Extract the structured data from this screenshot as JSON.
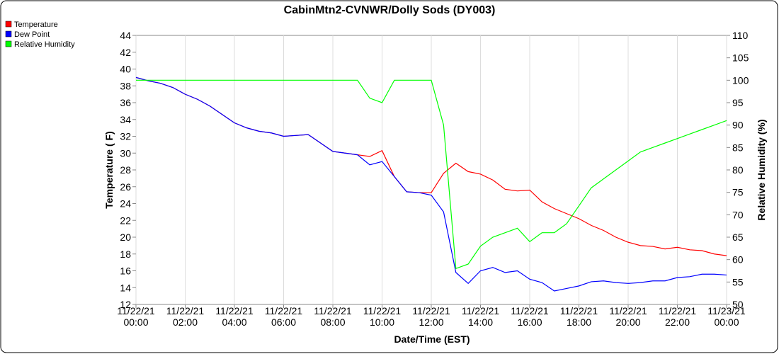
{
  "chart_data": {
    "type": "line",
    "title": "CabinMtn2-CVNWR/Dolly Sods (DY003)",
    "x_label": "Date/Time (EST)",
    "y_label": "Temperature ( F)",
    "y2_label": "Relative Humidity (%)",
    "x": [
      0,
      0.5,
      1,
      1.5,
      2,
      2.5,
      3,
      3.5,
      4,
      4.5,
      5,
      5.5,
      6,
      6.5,
      7,
      7.5,
      8,
      8.5,
      9,
      9.5,
      10,
      10.5,
      11,
      11.5,
      12,
      12.5,
      13,
      13.5,
      14,
      14.5,
      15,
      15.5,
      16,
      16.5,
      17,
      17.5,
      18,
      18.5,
      19,
      19.5,
      20,
      20.5,
      21,
      21.5,
      22,
      22.5,
      23,
      23.5,
      24
    ],
    "series": [
      {
        "name": "Temperature",
        "color": "#ff0000",
        "axis": "y",
        "values": [
          39.0,
          38.6,
          38.3,
          37.8,
          37.0,
          36.4,
          35.6,
          34.6,
          33.6,
          33.0,
          32.6,
          32.4,
          32.0,
          32.1,
          32.2,
          31.2,
          30.2,
          30.0,
          29.8,
          29.6,
          30.3,
          27.2,
          25.4,
          25.3,
          25.3,
          27.6,
          28.8,
          27.8,
          27.5,
          26.8,
          25.7,
          25.5,
          25.6,
          24.2,
          23.4,
          22.8,
          22.2,
          21.4,
          20.8,
          20.0,
          19.4,
          19.0,
          18.9,
          18.6,
          18.8,
          18.5,
          18.4,
          18.0,
          17.8
        ]
      },
      {
        "name": "Dew Point",
        "color": "#0000ff",
        "axis": "y",
        "values": [
          39.0,
          38.6,
          38.3,
          37.8,
          37.0,
          36.4,
          35.6,
          34.6,
          33.6,
          33.0,
          32.6,
          32.4,
          32.0,
          32.1,
          32.2,
          31.2,
          30.2,
          30.0,
          29.8,
          28.6,
          29.0,
          27.2,
          25.4,
          25.3,
          25.0,
          23.0,
          15.8,
          14.5,
          16.0,
          16.4,
          15.8,
          16.0,
          15.0,
          14.6,
          13.6,
          13.9,
          14.2,
          14.7,
          14.8,
          14.6,
          14.5,
          14.6,
          14.8,
          14.8,
          15.2,
          15.3,
          15.6,
          15.6,
          15.5
        ]
      },
      {
        "name": "Relative Humidity",
        "color": "#00ff00",
        "axis": "y2",
        "values": [
          100,
          100,
          100,
          100,
          100,
          100,
          100,
          100,
          100,
          100,
          100,
          100,
          100,
          100,
          100,
          100,
          100,
          100,
          100,
          96,
          95,
          100,
          100,
          100,
          100,
          90,
          58,
          59,
          63,
          65,
          66,
          67,
          64,
          66,
          66,
          68,
          72,
          76,
          78,
          80,
          82,
          84,
          85,
          86,
          87,
          88,
          89,
          90,
          91
        ]
      }
    ],
    "xlim": [
      0,
      24
    ],
    "xticks": [
      {
        "value": 0,
        "label": "11/22/21 00:00"
      },
      {
        "value": 2,
        "label": "11/22/21 02:00"
      },
      {
        "value": 4,
        "label": "11/22/21 04:00"
      },
      {
        "value": 6,
        "label": "11/22/21 06:00"
      },
      {
        "value": 8,
        "label": "11/22/21 08:00"
      },
      {
        "value": 10,
        "label": "11/22/21 10:00"
      },
      {
        "value": 12,
        "label": "11/22/21 12:00"
      },
      {
        "value": 14,
        "label": "11/22/21 14:00"
      },
      {
        "value": 16,
        "label": "11/22/21 16:00"
      },
      {
        "value": 18,
        "label": "11/22/21 18:00"
      },
      {
        "value": 20,
        "label": "11/22/21 20:00"
      },
      {
        "value": 22,
        "label": "11/22/21 22:00"
      },
      {
        "value": 24,
        "label": "11/23/21 00:00"
      }
    ],
    "ylim": [
      12,
      44
    ],
    "yticks": [
      12,
      14,
      16,
      18,
      20,
      22,
      24,
      26,
      28,
      30,
      32,
      34,
      36,
      38,
      40,
      42,
      44
    ],
    "y2lim": [
      50,
      110
    ],
    "y2ticks": [
      50,
      55,
      60,
      65,
      70,
      75,
      80,
      85,
      90,
      95,
      100,
      105,
      110
    ],
    "grid": "x",
    "legend": "top-left"
  }
}
